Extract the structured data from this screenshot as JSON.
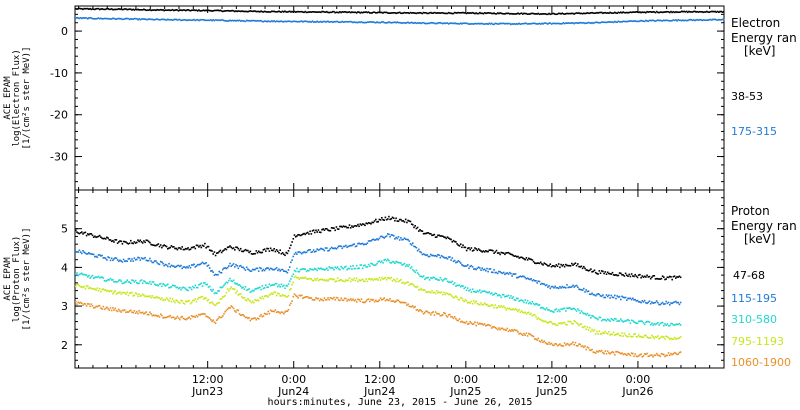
{
  "xaxis": {
    "ticks": [
      {
        "time": "12:00",
        "date": "Jun23"
      },
      {
        "time": "0:00",
        "date": "Jun24"
      },
      {
        "time": "12:00",
        "date": "Jun24"
      },
      {
        "time": "0:00",
        "date": "Jun25"
      },
      {
        "time": "12:00",
        "date": "Jun25"
      },
      {
        "time": "0:00",
        "date": "Jun26"
      }
    ],
    "label": "hours:minutes, June 23, 2015 - June 26, 2015"
  },
  "chart_data": [
    {
      "type": "scatter",
      "panel": "electron",
      "ylabel_lines": [
        "ACE EPAM",
        "log(Electron Flux)",
        "[1/(cm²s ster MeV)]"
      ],
      "ylim": [
        -38,
        6
      ],
      "yticks": [
        0,
        -10,
        -20,
        -30
      ],
      "xlim_hours": [
        -6.5,
        84
      ],
      "legend_title": [
        "Electron",
        "Energy ran",
        "[keV]"
      ],
      "series": [
        {
          "name": "38-53",
          "color": "#000000",
          "x_hours": [
            -6.5,
            0,
            6,
            12,
            18,
            24,
            30,
            36,
            42,
            48,
            54,
            60,
            66,
            72,
            78,
            84
          ],
          "values": [
            5.5,
            5.4,
            5.2,
            5.1,
            4.9,
            4.8,
            4.7,
            4.6,
            4.5,
            4.5,
            4.4,
            4.3,
            4.5,
            4.7,
            4.8,
            4.8
          ]
        },
        {
          "name": "175-315",
          "color": "#1f7ad8",
          "x_hours": [
            -6.5,
            0,
            6,
            12,
            18,
            24,
            30,
            36,
            42,
            48,
            54,
            60,
            66,
            72,
            78,
            84
          ],
          "values": [
            3.3,
            3.1,
            2.9,
            2.8,
            2.6,
            2.5,
            2.4,
            2.3,
            2.1,
            2.0,
            1.9,
            2.0,
            2.2,
            2.6,
            2.8,
            2.9
          ]
        }
      ]
    },
    {
      "type": "scatter",
      "panel": "proton",
      "ylabel_lines": [
        "ACE EPAM",
        "log(Proton Flux)",
        "[1/(cm²s ster MeV)]"
      ],
      "ylim": [
        1.4,
        6.0
      ],
      "yticks": [
        2,
        3,
        4,
        5
      ],
      "xlim_hours": [
        -6.5,
        84
      ],
      "legend_title": [
        "Proton",
        "Energy ran",
        "[keV]"
      ],
      "series": [
        {
          "name": "47-68",
          "color": "#000000",
          "x_hours": [
            -6.5,
            -2,
            0,
            3,
            6,
            9,
            11.5,
            13,
            15,
            18,
            21,
            23,
            24,
            27,
            29,
            31,
            34,
            37,
            40,
            42,
            45,
            48,
            51,
            54,
            57,
            60,
            63,
            66,
            69,
            72,
            75,
            78
          ],
          "values": [
            4.95,
            4.75,
            4.65,
            4.7,
            4.55,
            4.5,
            4.6,
            4.35,
            4.55,
            4.4,
            4.5,
            4.35,
            4.85,
            4.95,
            5.0,
            5.05,
            5.15,
            5.3,
            5.2,
            4.9,
            4.8,
            4.5,
            4.45,
            4.35,
            4.2,
            4.05,
            4.1,
            3.9,
            3.85,
            3.8,
            3.75,
            3.75
          ]
        },
        {
          "name": "115-195",
          "color": "#1f7ad8",
          "x_hours": [
            -6.5,
            -2,
            0,
            3,
            6,
            9,
            11.5,
            13,
            15,
            18,
            21,
            23,
            24,
            27,
            29,
            31,
            34,
            37,
            40,
            42,
            45,
            48,
            51,
            54,
            57,
            60,
            63,
            66,
            69,
            72,
            75,
            78
          ],
          "values": [
            4.45,
            4.25,
            4.2,
            4.25,
            4.1,
            4.0,
            4.15,
            3.8,
            4.1,
            3.95,
            4.0,
            3.9,
            4.4,
            4.45,
            4.5,
            4.55,
            4.65,
            4.85,
            4.7,
            4.35,
            4.3,
            4.05,
            3.95,
            3.85,
            3.7,
            3.5,
            3.55,
            3.3,
            3.25,
            3.15,
            3.1,
            3.1
          ]
        },
        {
          "name": "310-580",
          "color": "#1fd8d0",
          "x_hours": [
            -6.5,
            -2,
            0,
            3,
            6,
            9,
            11.5,
            13,
            15,
            18,
            21,
            23,
            24,
            27,
            29,
            31,
            34,
            37,
            40,
            42,
            45,
            48,
            51,
            54,
            57,
            60,
            63,
            66,
            69,
            72,
            75,
            78
          ],
          "values": [
            3.85,
            3.7,
            3.65,
            3.65,
            3.55,
            3.45,
            3.6,
            3.35,
            3.7,
            3.4,
            3.6,
            3.5,
            3.95,
            3.95,
            4.0,
            4.0,
            4.05,
            4.2,
            4.05,
            3.75,
            3.7,
            3.45,
            3.35,
            3.25,
            3.1,
            2.9,
            2.95,
            2.7,
            2.65,
            2.6,
            2.55,
            2.55
          ]
        },
        {
          "name": "795-1193",
          "color": "#c8e61e",
          "x_hours": [
            -6.5,
            -2,
            0,
            3,
            6,
            9,
            11.5,
            13,
            15,
            18,
            21,
            23,
            24,
            27,
            29,
            31,
            34,
            37,
            40,
            42,
            45,
            48,
            51,
            54,
            57,
            60,
            63,
            66,
            69,
            72,
            75,
            78
          ],
          "values": [
            3.55,
            3.4,
            3.35,
            3.3,
            3.2,
            3.1,
            3.25,
            3.0,
            3.5,
            3.1,
            3.35,
            3.25,
            3.75,
            3.7,
            3.7,
            3.7,
            3.7,
            3.75,
            3.6,
            3.4,
            3.35,
            3.15,
            3.05,
            2.95,
            2.8,
            2.55,
            2.6,
            2.35,
            2.3,
            2.25,
            2.2,
            2.2
          ]
        },
        {
          "name": "1060-1900",
          "color": "#e8902a",
          "x_hours": [
            -6.5,
            -2,
            0,
            3,
            6,
            9,
            11.5,
            13,
            15,
            18,
            21,
            23,
            24,
            27,
            29,
            31,
            34,
            37,
            40,
            42,
            45,
            48,
            51,
            54,
            57,
            60,
            63,
            66,
            69,
            72,
            75,
            78
          ],
          "values": [
            3.1,
            2.95,
            2.9,
            2.85,
            2.75,
            2.7,
            2.8,
            2.6,
            3.0,
            2.65,
            2.9,
            2.85,
            3.3,
            3.2,
            3.2,
            3.2,
            3.15,
            3.2,
            3.05,
            2.85,
            2.8,
            2.6,
            2.5,
            2.4,
            2.25,
            2.0,
            2.05,
            1.85,
            1.8,
            1.75,
            1.75,
            1.8
          ]
        }
      ]
    }
  ]
}
